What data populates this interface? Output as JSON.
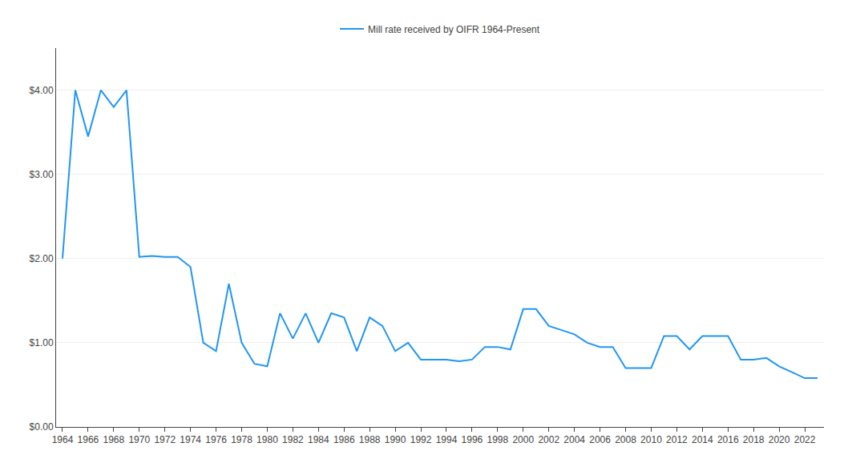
{
  "chart_data": {
    "type": "line",
    "x": [
      1964,
      1965,
      1966,
      1967,
      1968,
      1969,
      1970,
      1971,
      1972,
      1973,
      1974,
      1975,
      1976,
      1977,
      1978,
      1979,
      1980,
      1981,
      1982,
      1983,
      1984,
      1985,
      1986,
      1987,
      1988,
      1989,
      1990,
      1991,
      1992,
      1993,
      1994,
      1995,
      1996,
      1997,
      1998,
      1999,
      2000,
      2001,
      2002,
      2003,
      2004,
      2005,
      2006,
      2007,
      2008,
      2009,
      2010,
      2011,
      2012,
      2013,
      2014,
      2015,
      2016,
      2017,
      2018,
      2019,
      2020,
      2021,
      2022,
      2023
    ],
    "series": [
      {
        "name": "Mill rate received by OIFR 1964-Present",
        "color": "#2196f3",
        "values": [
          2.0,
          4.0,
          3.45,
          4.0,
          3.8,
          4.0,
          2.02,
          2.03,
          2.02,
          2.02,
          1.9,
          1.0,
          0.9,
          1.7,
          1.0,
          0.75,
          0.72,
          1.35,
          1.05,
          1.35,
          1.0,
          1.35,
          1.3,
          0.9,
          1.3,
          1.2,
          0.9,
          1.0,
          0.8,
          0.8,
          0.8,
          0.78,
          0.8,
          0.95,
          0.95,
          0.92,
          1.4,
          1.4,
          1.2,
          1.15,
          1.1,
          1.0,
          0.95,
          0.95,
          0.7,
          0.7,
          0.7,
          1.08,
          1.08,
          0.92,
          1.08,
          1.08,
          1.08,
          0.8,
          0.8,
          0.82,
          0.72,
          0.65,
          0.58,
          0.58
        ]
      }
    ],
    "xlim": [
      1963.5,
      2023.5
    ],
    "xticks": [
      1964,
      1966,
      1968,
      1970,
      1972,
      1974,
      1976,
      1978,
      1980,
      1982,
      1984,
      1986,
      1988,
      1990,
      1992,
      1994,
      1996,
      1998,
      2000,
      2002,
      2004,
      2006,
      2008,
      2010,
      2012,
      2014,
      2016,
      2018,
      2020,
      2022
    ],
    "ylim": [
      0.0,
      4.5
    ],
    "yticks": [
      {
        "value": 0.0,
        "label": "$0.00"
      },
      {
        "value": 1.0,
        "label": "$1.00"
      },
      {
        "value": 2.0,
        "label": "$2.00"
      },
      {
        "value": 3.0,
        "label": "$3.00"
      },
      {
        "value": 4.0,
        "label": "$4.00"
      }
    ],
    "grid": true,
    "legend": "top"
  }
}
